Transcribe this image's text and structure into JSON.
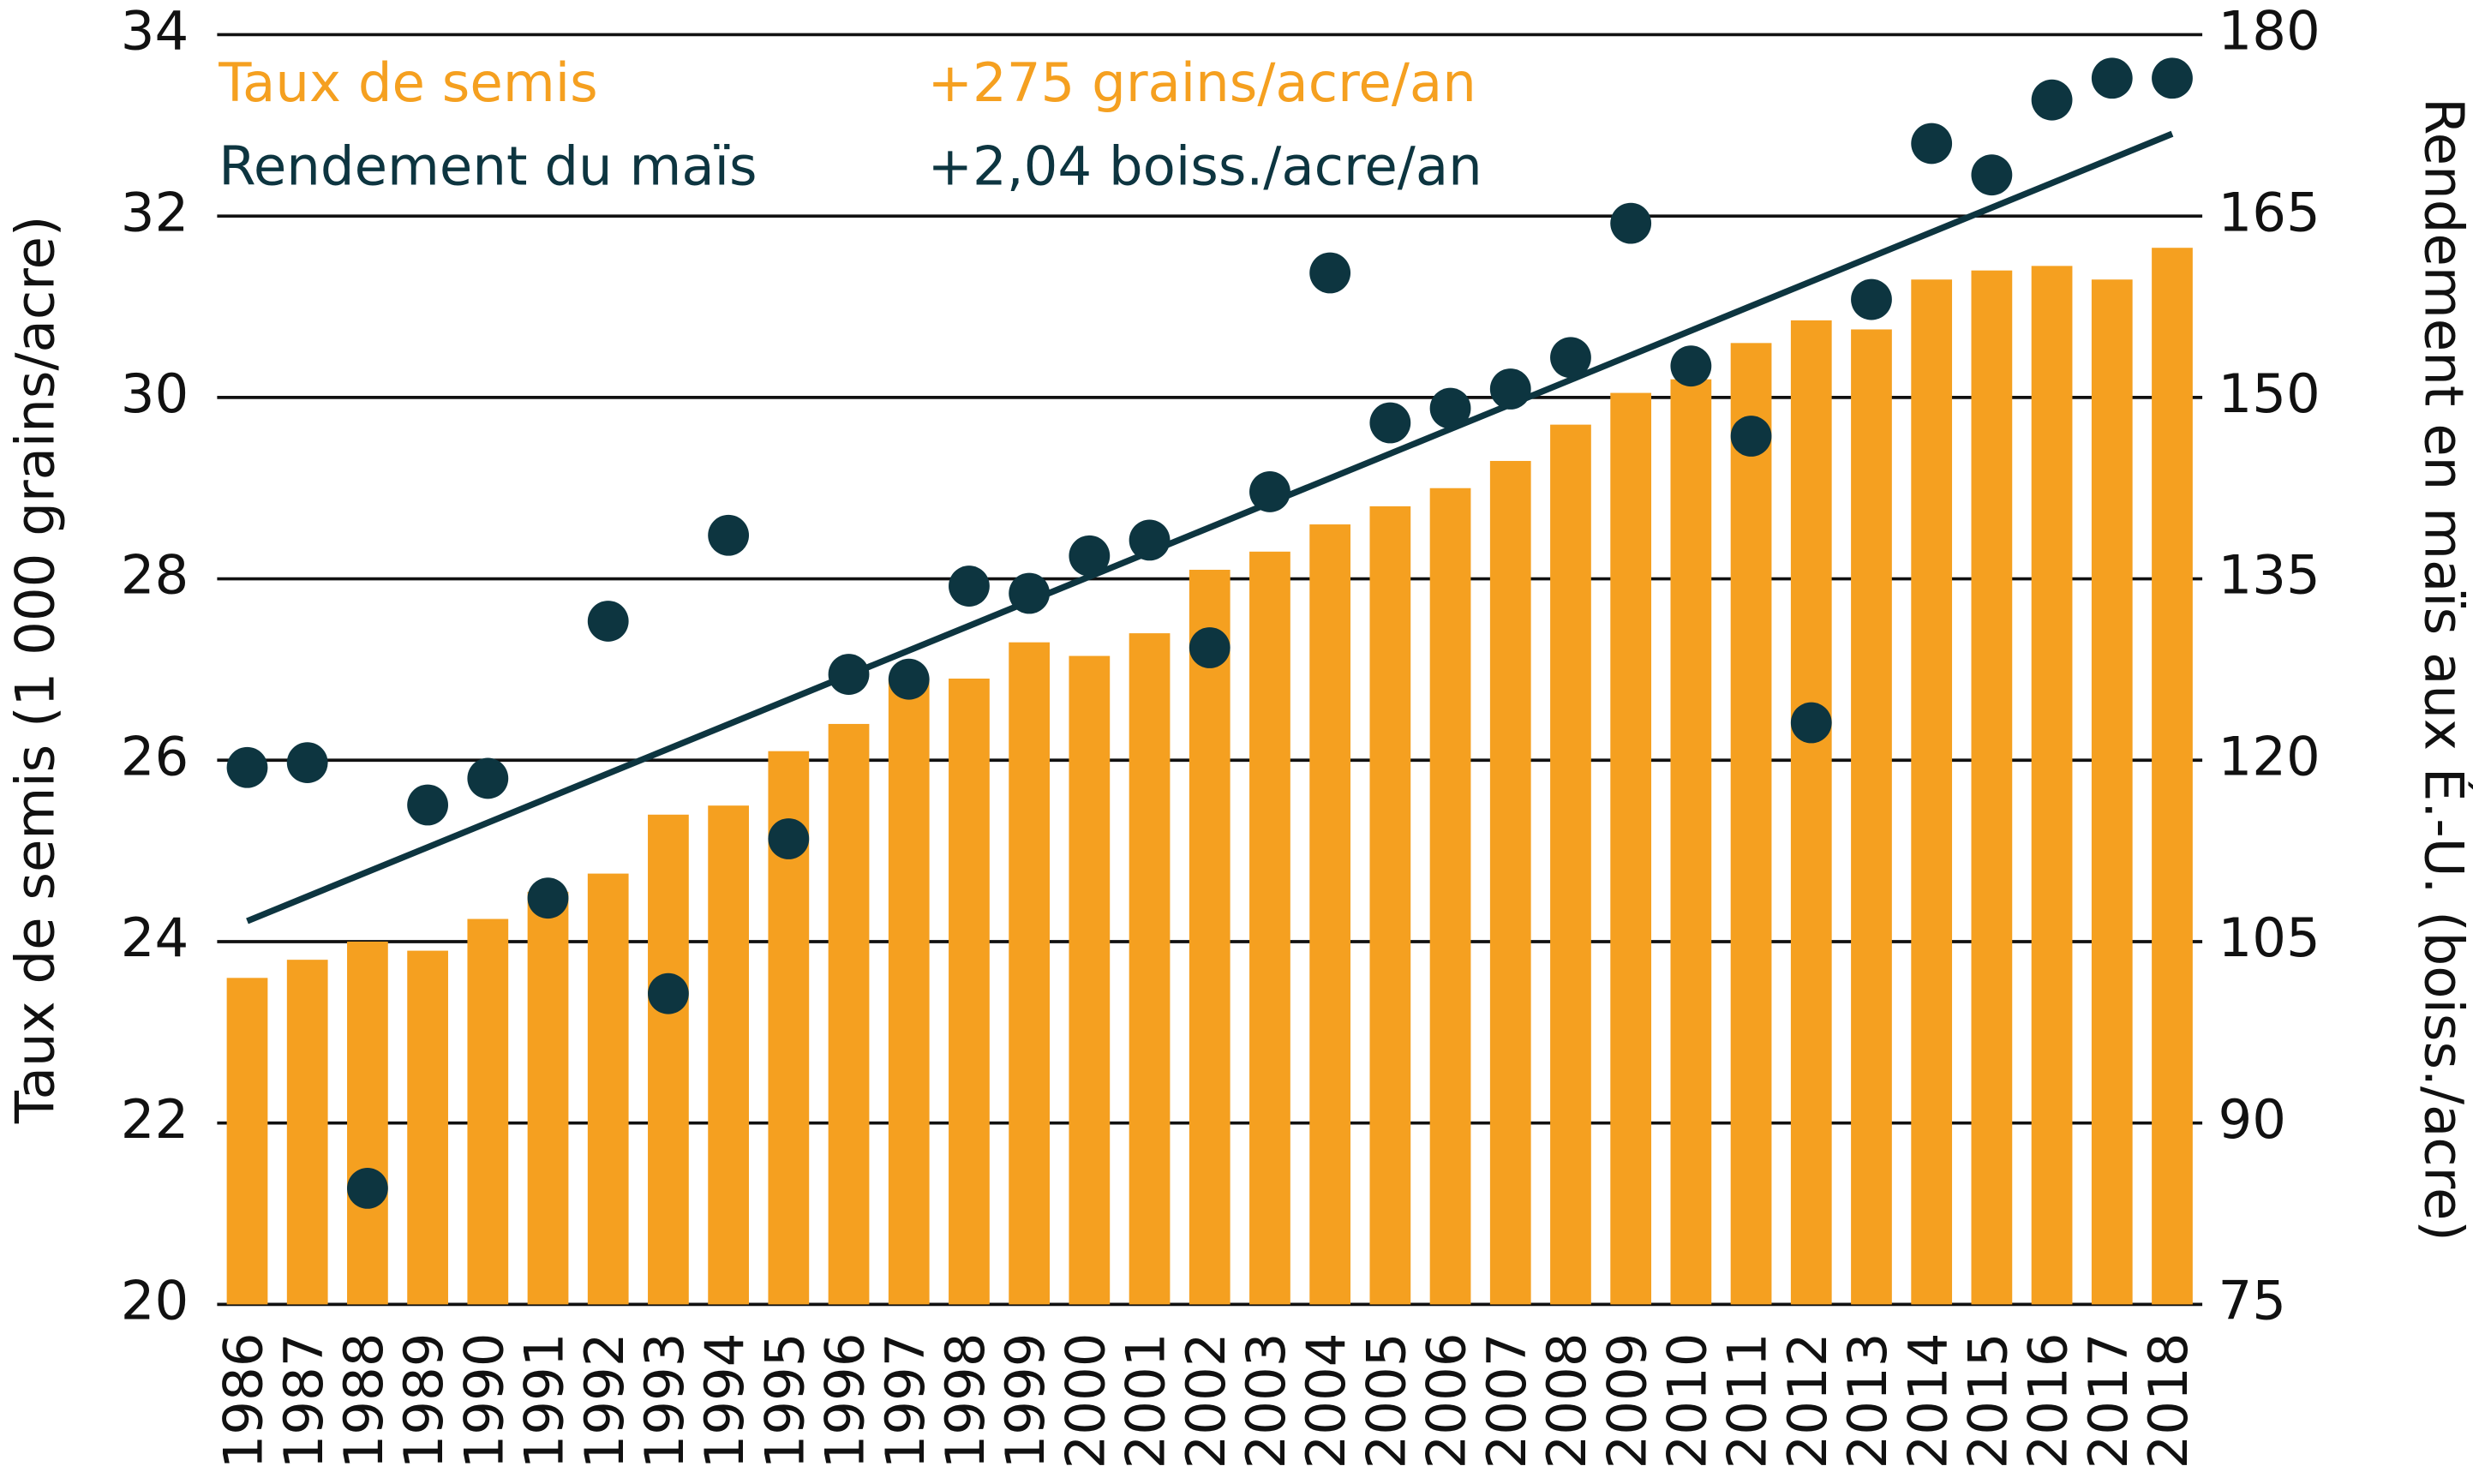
{
  "chart_data": {
    "type": "bar",
    "categories": [
      "1986",
      "1987",
      "1988",
      "1989",
      "1990",
      "1991",
      "1992",
      "1993",
      "1994",
      "1995",
      "1996",
      "1997",
      "1998",
      "1999",
      "2000",
      "2001",
      "2002",
      "2003",
      "2004",
      "2005",
      "2006",
      "2007",
      "2008",
      "2009",
      "2010",
      "2011",
      "2012",
      "2013",
      "2014",
      "2015",
      "2016",
      "2017",
      "2018"
    ],
    "series": [
      {
        "name": "Taux de semis",
        "rate": "+275 grains/acre/an",
        "type": "bar",
        "color": "#f5a020",
        "values": [
          23.6,
          23.8,
          24.0,
          23.9,
          24.25,
          24.55,
          24.75,
          25.4,
          25.5,
          26.1,
          26.4,
          26.9,
          26.9,
          27.3,
          27.15,
          27.4,
          28.1,
          28.3,
          28.6,
          28.8,
          29.0,
          29.3,
          29.7,
          30.05,
          30.2,
          30.6,
          30.85,
          30.75,
          31.3,
          31.4,
          31.45,
          31.3,
          31.65
        ]
      },
      {
        "name": "Rendement du maïs",
        "rate": "+2,04 boiss./acre/an",
        "type": "scatter",
        "axis": "y2",
        "color": "#0d3540",
        "values": [
          119.4,
          119.8,
          84.6,
          116.3,
          118.5,
          108.6,
          131.5,
          100.7,
          138.6,
          113.5,
          127.1,
          126.7,
          134.4,
          133.8,
          136.9,
          138.2,
          129.3,
          142.2,
          160.3,
          147.9,
          149.1,
          150.7,
          153.3,
          164.4,
          152.6,
          146.8,
          123.1,
          158.1,
          171.0,
          168.4,
          174.6,
          176.4,
          176.4
        ],
        "trend": [
          106.7,
          171.8
        ]
      }
    ],
    "ylabel": "Taux de semis (1 000 grains/acre)",
    "y2label": "Rendement en maïs aux É.-U. (boiss./acre)",
    "ylim": [
      20,
      34
    ],
    "yticks": [
      20,
      22,
      24,
      26,
      28,
      30,
      32,
      34
    ],
    "y2lim": [
      75,
      180
    ],
    "y2ticks": [
      75,
      90,
      105,
      120,
      135,
      150,
      165,
      180
    ],
    "grid": true
  }
}
